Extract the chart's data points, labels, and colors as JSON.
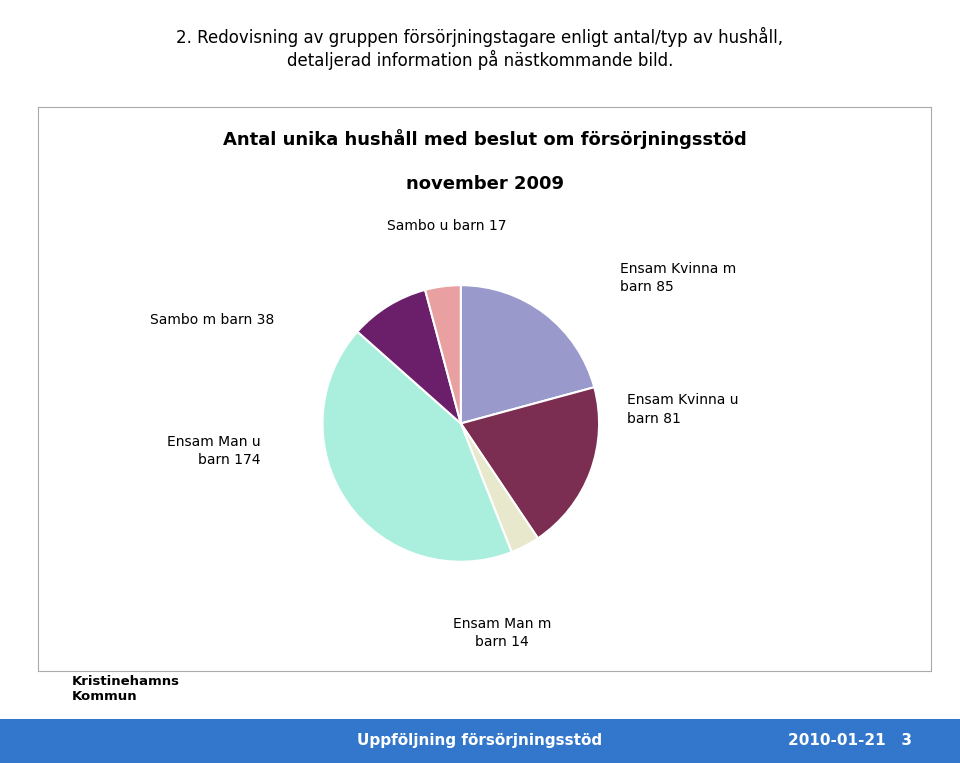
{
  "title_line1": "Antal unika hushåll med beslut om försörjningsstöd",
  "title_line2": "november 2009",
  "header_text": "2. Redovisning av gruppen försörjningstagare enligt antal/typ av hushåll,\ndetaljerad information på nästkommande bild.",
  "slices": [
    {
      "label": "Ensam Kvinna m\nbarn 85",
      "value": 85,
      "color": "#9999cc"
    },
    {
      "label": "Ensam Kvinna u\nbarn 81",
      "value": 81,
      "color": "#7b2d52"
    },
    {
      "label": "Ensam Man m\nbarn 14",
      "value": 14,
      "color": "#e8e8cc"
    },
    {
      "label": "Ensam Man u\nbarn 174",
      "value": 174,
      "color": "#aaeedd"
    },
    {
      "label": "Sambo m barn 38",
      "value": 38,
      "color": "#6b1f6b"
    },
    {
      "label": "Sambo u barn 17",
      "value": 17,
      "color": "#e8a0a0"
    }
  ],
  "footer_text_center": "Uppföljning försörjningsstöd",
  "footer_text_right": "2010-01-21   3",
  "footer_bg": "#3377cc",
  "footer_text_color": "#ffffff",
  "bg_color": "#ffffff",
  "box_bg": "#ffffff",
  "box_edge": "#aaaaaa"
}
